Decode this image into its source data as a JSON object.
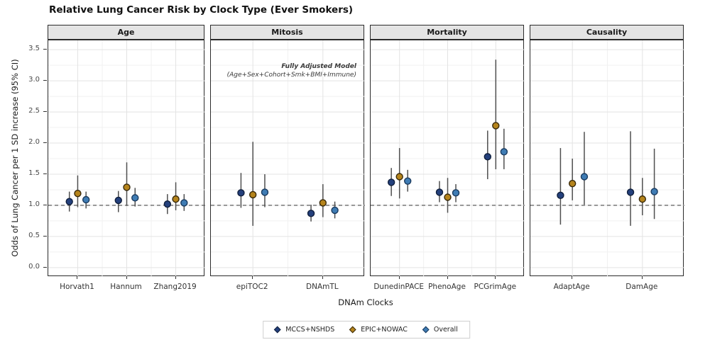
{
  "title": "Relative Lung Cancer Risk by Clock Type (Ever Smokers)",
  "y_axis": {
    "label": "Odds of Lung Cancer per 1 SD increase (95% CI)",
    "tick_labels": [
      "0.0",
      "0.5",
      "1.0",
      "1.5",
      "2.0",
      "2.5",
      "3.0",
      "3.5"
    ]
  },
  "x_axis": {
    "label": "DNAm Clocks"
  },
  "annotation": {
    "line1": "Fully Adjusted Model",
    "line2": "(Age+Sex+Cohort+Smk+BMI+Immune)"
  },
  "legend": {
    "items": [
      {
        "label": "MCCS+NSHDS",
        "fill": "#24407c",
        "stroke": "#101f3d"
      },
      {
        "label": "EPIC+NOWAC",
        "fill": "#b5841c",
        "stroke": "#38290a"
      },
      {
        "label": "Overall",
        "fill": "#3f7cb4",
        "stroke": "#1a3a5e"
      }
    ]
  },
  "colors": {
    "errorbar": "#4f4f4f",
    "grid_major": "#e3e3e3",
    "grid_minor": "#f1f1f1",
    "reference_line": "#4a4a4a",
    "panel_border": "#2b2b2b",
    "strip_bg": "#e4e4e4"
  },
  "chart_data": {
    "type": "scatter",
    "subtype": "forest-pointrange-facets",
    "title": "Relative Lung Cancer Risk by Clock Type (Ever Smokers)",
    "xlabel": "DNAm Clocks",
    "ylabel": "Odds of Lung Cancer per 1 SD increase (95% CI)",
    "ylim": [
      -0.15,
      3.65
    ],
    "yticks": [
      0.0,
      0.5,
      1.0,
      1.5,
      2.0,
      2.5,
      3.0,
      3.5
    ],
    "reference_line": 1.0,
    "grid": true,
    "legend_position": "bottom",
    "series_names": [
      "MCCS+NSHDS",
      "EPIC+NOWAC",
      "Overall"
    ],
    "panels": [
      {
        "label": "Age",
        "categories": [
          "Horvath1",
          "Hannum",
          "Zhang2019"
        ],
        "series": [
          {
            "name": "MCCS+NSHDS",
            "or": [
              1.06,
              1.08,
              1.02
            ],
            "ci_low": [
              0.9,
              0.89,
              0.86
            ],
            "ci_high": [
              1.22,
              1.23,
              1.18
            ]
          },
          {
            "name": "EPIC+NOWAC",
            "or": [
              1.19,
              1.29,
              1.1
            ],
            "ci_low": [
              0.97,
              0.99,
              0.92
            ],
            "ci_high": [
              1.48,
              1.69,
              1.37
            ]
          },
          {
            "name": "Overall",
            "or": [
              1.09,
              1.12,
              1.04
            ],
            "ci_low": [
              0.95,
              0.98,
              0.91
            ],
            "ci_high": [
              1.22,
              1.28,
              1.18
            ]
          }
        ]
      },
      {
        "label": "Mitosis",
        "categories": [
          "epiTOC2",
          "DNAmTL"
        ],
        "series": [
          {
            "name": "MCCS+NSHDS",
            "or": [
              1.2,
              0.87
            ],
            "ci_low": [
              0.96,
              0.74
            ],
            "ci_high": [
              1.52,
              1.01
            ]
          },
          {
            "name": "EPIC+NOWAC",
            "or": [
              1.17,
              1.04
            ],
            "ci_low": [
              0.67,
              0.81
            ],
            "ci_high": [
              2.02,
              1.34
            ]
          },
          {
            "name": "Overall",
            "or": [
              1.21,
              0.92
            ],
            "ci_low": [
              0.97,
              0.79
            ],
            "ci_high": [
              1.5,
              1.06
            ]
          }
        ]
      },
      {
        "label": "Mortality",
        "categories": [
          "DunedinPACE",
          "PhenoAge",
          "PCGrimAge"
        ],
        "series": [
          {
            "name": "MCCS+NSHDS",
            "or": [
              1.37,
              1.21,
              1.78
            ],
            "ci_low": [
              1.15,
              1.05,
              1.42
            ],
            "ci_high": [
              1.6,
              1.39,
              2.2
            ]
          },
          {
            "name": "EPIC+NOWAC",
            "or": [
              1.46,
              1.13,
              2.28
            ],
            "ci_low": [
              1.11,
              0.88,
              1.58
            ],
            "ci_high": [
              1.92,
              1.44,
              3.34
            ]
          },
          {
            "name": "Overall",
            "or": [
              1.39,
              1.2,
              1.86
            ],
            "ci_low": [
              1.22,
              1.05,
              1.58
            ],
            "ci_high": [
              1.57,
              1.34,
              2.23
            ]
          }
        ]
      },
      {
        "label": "Causality",
        "categories": [
          "AdaptAge",
          "DamAge"
        ],
        "series": [
          {
            "name": "MCCS+NSHDS",
            "or": [
              1.16,
              1.21
            ],
            "ci_low": [
              0.69,
              0.67
            ],
            "ci_high": [
              1.92,
              2.19
            ]
          },
          {
            "name": "EPIC+NOWAC",
            "or": [
              1.35,
              1.1
            ],
            "ci_low": [
              1.08,
              0.84
            ],
            "ci_high": [
              1.75,
              1.44
            ]
          },
          {
            "name": "Overall",
            "or": [
              1.46,
              1.22
            ],
            "ci_low": [
              1.01,
              0.78
            ],
            "ci_high": [
              2.18,
              1.91
            ]
          }
        ]
      }
    ]
  }
}
